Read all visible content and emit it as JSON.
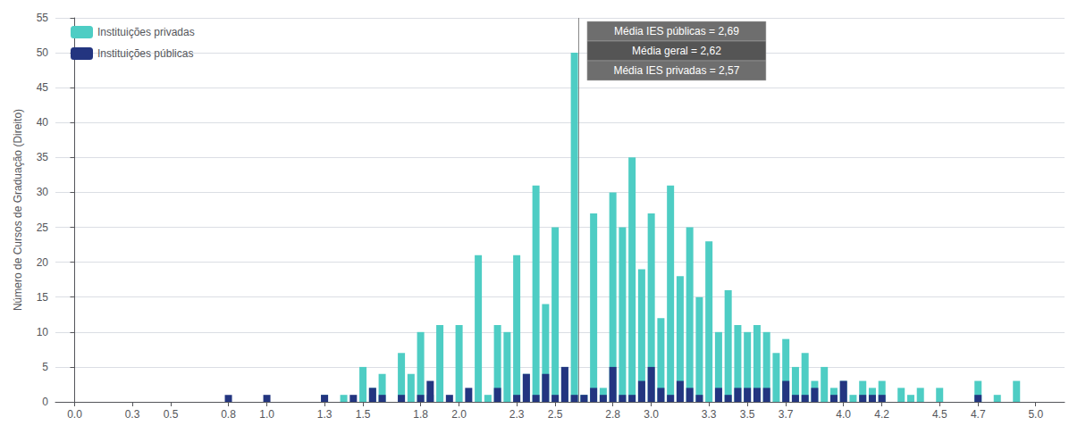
{
  "chart_data": {
    "type": "bar",
    "stacked": true,
    "ylabel": "Número de Cursos de Graduação (Direito)",
    "x": [
      0.0,
      0.05,
      0.1,
      0.15,
      0.2,
      0.25,
      0.3,
      0.35,
      0.4,
      0.45,
      0.5,
      0.55,
      0.6,
      0.65,
      0.7,
      0.75,
      0.8,
      0.85,
      0.9,
      0.95,
      1.0,
      1.05,
      1.1,
      1.15,
      1.2,
      1.25,
      1.3,
      1.35,
      1.4,
      1.45,
      1.5,
      1.55,
      1.6,
      1.65,
      1.7,
      1.75,
      1.8,
      1.85,
      1.9,
      1.95,
      2.0,
      2.05,
      2.1,
      2.15,
      2.2,
      2.25,
      2.3,
      2.35,
      2.4,
      2.45,
      2.5,
      2.55,
      2.6,
      2.65,
      2.7,
      2.75,
      2.8,
      2.85,
      2.9,
      2.95,
      3.0,
      3.05,
      3.1,
      3.15,
      3.2,
      3.25,
      3.3,
      3.35,
      3.4,
      3.45,
      3.5,
      3.55,
      3.6,
      3.65,
      3.7,
      3.75,
      3.8,
      3.85,
      3.9,
      3.95,
      4.0,
      4.05,
      4.1,
      4.15,
      4.2,
      4.25,
      4.3,
      4.35,
      4.4,
      4.45,
      4.5,
      4.55,
      4.6,
      4.65,
      4.7,
      4.75,
      4.8,
      4.85,
      4.9,
      4.95,
      5.0
    ],
    "series": [
      {
        "name": "Instituições privadas",
        "color": "#4ecdc4",
        "values": [
          0,
          0,
          0,
          0,
          0,
          0,
          0,
          0,
          0,
          0,
          0,
          0,
          0,
          0,
          0,
          0,
          0,
          0,
          0,
          0,
          0,
          0,
          0,
          0,
          0,
          0,
          1,
          0,
          1,
          0,
          5,
          2,
          4,
          0,
          7,
          4,
          10,
          1,
          11,
          0,
          11,
          0,
          21,
          1,
          11,
          10,
          21,
          4,
          31,
          14,
          25,
          5,
          50,
          1,
          27,
          2,
          30,
          25,
          35,
          19,
          27,
          12,
          31,
          18,
          25,
          15,
          23,
          10,
          16,
          11,
          10,
          11,
          10,
          7,
          9,
          5,
          7,
          3,
          5,
          2,
          3,
          1,
          3,
          2,
          3,
          0,
          2,
          1,
          2,
          0,
          2,
          0,
          0,
          0,
          3,
          0,
          1,
          0,
          3,
          0,
          0
        ]
      },
      {
        "name": "Instituições públicas",
        "color": "#233580",
        "values": [
          0,
          0,
          0,
          0,
          0,
          0,
          0,
          0,
          0,
          0,
          0,
          0,
          0,
          0,
          0,
          0,
          1,
          0,
          0,
          0,
          1,
          0,
          0,
          0,
          0,
          0,
          1,
          0,
          0,
          1,
          0,
          2,
          1,
          0,
          1,
          0,
          1,
          3,
          0,
          1,
          0,
          2,
          0,
          0,
          2,
          0,
          1,
          4,
          1,
          4,
          1,
          5,
          1,
          1,
          2,
          1,
          5,
          1,
          1,
          3,
          5,
          2,
          1,
          3,
          2,
          1,
          0,
          2,
          1,
          2,
          2,
          2,
          2,
          0,
          3,
          1,
          1,
          2,
          0,
          1,
          3,
          0,
          1,
          1,
          1,
          0,
          0,
          0,
          0,
          0,
          0,
          0,
          0,
          0,
          1,
          0,
          0,
          0,
          0,
          0,
          0
        ]
      }
    ],
    "mean_line_x": 2.62,
    "annotations": [
      "Média IES públicas = 2,69",
      "Média geral = 2,62",
      "Média IES privadas = 2,57"
    ],
    "xlim": [
      -0.1,
      5.15
    ],
    "xticks": [
      {
        "value": 0.0,
        "label": "0.0"
      },
      0.3,
      0.5,
      0.8,
      {
        "value": 1.0,
        "label": "1.0"
      },
      1.3,
      1.5,
      1.8,
      {
        "value": 2.0,
        "label": "2.0"
      },
      2.3,
      2.5,
      2.8,
      {
        "value": 3.0,
        "label": "3.0"
      },
      3.3,
      3.5,
      3.7,
      {
        "value": 4.0,
        "label": "4.0"
      },
      4.2,
      4.5,
      4.7,
      {
        "value": 5.0,
        "label": "5.0"
      }
    ],
    "ylim": [
      0,
      55
    ],
    "yticks": [
      0,
      5,
      10,
      15,
      20,
      25,
      30,
      35,
      40,
      45,
      50,
      55
    ],
    "grid": true,
    "legend": "upper left"
  }
}
